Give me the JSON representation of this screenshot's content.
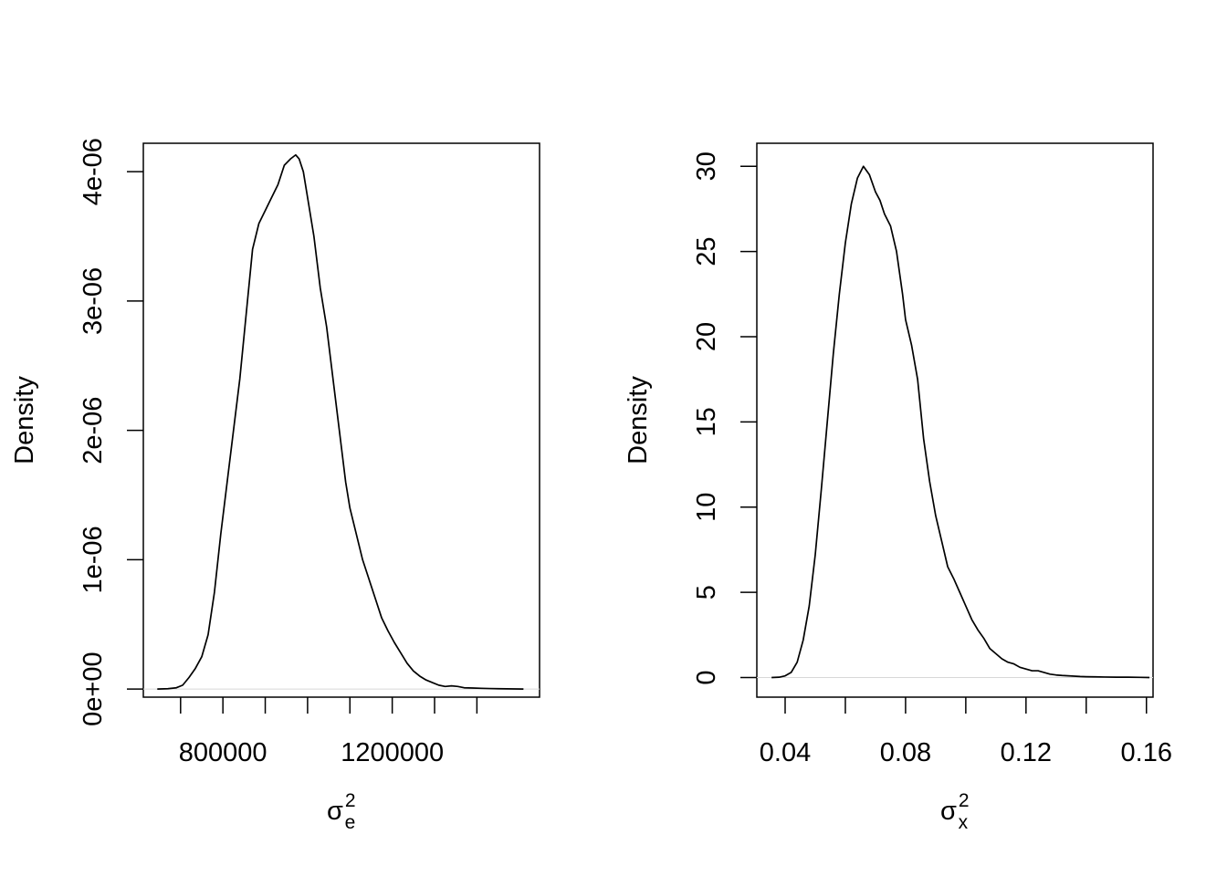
{
  "chart_data": [
    {
      "type": "line",
      "title": "",
      "xlabel": "σ",
      "xlabel_sup": "2",
      "xlabel_sub": "e",
      "ylabel": "Density",
      "xlim": [
        612000,
        1548000
      ],
      "ylim": [
        -6.25e-08,
        4.22e-06
      ],
      "xticks": [
        700000,
        800000,
        900000,
        1000000,
        1100000,
        1200000,
        1300000,
        1400000
      ],
      "xticklabels": [
        {
          "value": 800000,
          "label": "800000"
        },
        {
          "value": 1200000,
          "label": "1200000"
        }
      ],
      "yticks": [
        0,
        1e-06,
        2e-06,
        3e-06,
        4e-06
      ],
      "yticklabels": [
        "0e+00",
        "1e-06",
        "2e-06",
        "3e-06",
        "4e-06"
      ],
      "grid": false,
      "baseline": 0,
      "series": [
        {
          "x": [
            645000,
            670000,
            690000,
            705000,
            720000,
            735000,
            750000,
            765000,
            780000,
            795000,
            810000,
            825000,
            840000,
            855000,
            870000,
            885000,
            900000,
            915000,
            930000,
            945000,
            960000,
            972000,
            980000,
            990000,
            1000000,
            1015000,
            1030000,
            1045000,
            1060000,
            1075000,
            1090000,
            1100000,
            1115000,
            1130000,
            1145000,
            1160000,
            1175000,
            1190000,
            1205000,
            1220000,
            1235000,
            1250000,
            1265000,
            1280000,
            1295000,
            1310000,
            1325000,
            1340000,
            1355000,
            1370000,
            1390000,
            1410000,
            1430000,
            1450000,
            1470000,
            1490000,
            1510000
          ],
          "y": [
            0,
            3e-09,
            1e-08,
            3e-08,
            9e-08,
            1.6e-07,
            2.5e-07,
            4.2e-07,
            7.5e-07,
            1.2e-06,
            1.6e-06,
            2e-06,
            2.4e-06,
            2.9e-06,
            3.4e-06,
            3.6e-06,
            3.7e-06,
            3.8e-06,
            3.9e-06,
            4.05e-06,
            4.1e-06,
            4.13e-06,
            4.1e-06,
            4e-06,
            3.8e-06,
            3.5e-06,
            3.1e-06,
            2.8e-06,
            2.4e-06,
            2e-06,
            1.6e-06,
            1.4e-06,
            1.2e-06,
            1e-06,
            8.5e-07,
            7e-07,
            5.5e-07,
            4.5e-07,
            3.6e-07,
            2.8e-07,
            2e-07,
            1.4e-07,
            1e-07,
            7e-08,
            5e-08,
            3e-08,
            2e-08,
            2.5e-08,
            2e-08,
            1e-08,
            8e-09,
            6e-09,
            4e-09,
            3e-09,
            2e-09,
            1e-09,
            0
          ]
        }
      ]
    },
    {
      "type": "line",
      "title": "",
      "xlabel": "σ",
      "xlabel_sup": "2",
      "xlabel_sub": "x",
      "ylabel": "Density",
      "xlim": [
        0.0306,
        0.1622
      ],
      "ylim": [
        -1.15,
        31.35
      ],
      "xticks": [
        0.04,
        0.06,
        0.08,
        0.1,
        0.12,
        0.14,
        0.16
      ],
      "xticklabels": [
        {
          "value": 0.04,
          "label": "0.04"
        },
        {
          "value": 0.08,
          "label": "0.08"
        },
        {
          "value": 0.12,
          "label": "0.12"
        },
        {
          "value": 0.16,
          "label": "0.16"
        }
      ],
      "yticks": [
        0,
        5,
        10,
        15,
        20,
        25,
        30
      ],
      "yticklabels": [
        "0",
        "5",
        "10",
        "15",
        "20",
        "25",
        "30"
      ],
      "grid": false,
      "baseline": 0,
      "series": [
        {
          "x": [
            0.0355,
            0.038,
            0.04,
            0.042,
            0.044,
            0.046,
            0.048,
            0.05,
            0.052,
            0.054,
            0.056,
            0.058,
            0.06,
            0.062,
            0.064,
            0.066,
            0.068,
            0.07,
            0.0715,
            0.073,
            0.075,
            0.077,
            0.079,
            0.08,
            0.082,
            0.084,
            0.086,
            0.088,
            0.09,
            0.092,
            0.094,
            0.096,
            0.098,
            0.1,
            0.102,
            0.104,
            0.106,
            0.108,
            0.11,
            0.112,
            0.114,
            0.116,
            0.118,
            0.12,
            0.122,
            0.124,
            0.126,
            0.128,
            0.13,
            0.132,
            0.134,
            0.136,
            0.138,
            0.14,
            0.143,
            0.146,
            0.15,
            0.154,
            0.158,
            0.161
          ],
          "y": [
            0,
            0.02,
            0.1,
            0.3,
            0.9,
            2.2,
            4.2,
            7.2,
            11.0,
            15.0,
            19.0,
            22.5,
            25.5,
            27.8,
            29.3,
            30.0,
            29.5,
            28.5,
            28.0,
            27.2,
            26.5,
            25.0,
            22.5,
            21.0,
            19.5,
            17.5,
            14.0,
            11.5,
            9.5,
            8.0,
            6.5,
            5.8,
            5.0,
            4.2,
            3.4,
            2.8,
            2.3,
            1.7,
            1.4,
            1.1,
            0.9,
            0.8,
            0.6,
            0.5,
            0.4,
            0.4,
            0.3,
            0.2,
            0.15,
            0.12,
            0.1,
            0.08,
            0.06,
            0.05,
            0.04,
            0.03,
            0.02,
            0.02,
            0.01,
            0.0
          ]
        }
      ]
    }
  ]
}
